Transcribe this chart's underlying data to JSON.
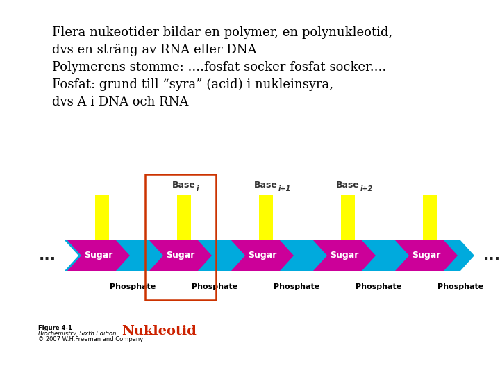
{
  "title_text": "Flera nukeotider bildar en polymer, en polynukleotid,\ndvs en sträng av RNA eller DNA\nPolymerens stomme: ....fosfat-socker-fosfat-socker....\nFosfat: grund till “syra” (acid) i nukleinsyra,\ndvs A i DNA och RNA",
  "sugar_color": "#CC0099",
  "phosphate_color": "#00AADD",
  "base_color": "#FFFF00",
  "sugar_label": "Sugar",
  "phosphate_label": "Phosphate",
  "base_labels_main": [
    "",
    "Base",
    "Base",
    "Base",
    ""
  ],
  "base_subs": [
    "",
    "i",
    "i+1",
    "i+2",
    ""
  ],
  "nukleotid_label": "Nukleotid",
  "nukleotid_color": "#CC2200",
  "figure_label_1": "Figure 4-1",
  "figure_label_2": "Biochemistry, Sixth Edition",
  "figure_label_3": "© 2007 W.H.Freeman and Company",
  "box_color": "#CC3300",
  "bg_color": "#FFFFFF",
  "dots_color": "#222222",
  "n_sugars": 5,
  "title_fontsize": 13,
  "sugar_fontsize": 9,
  "phosphate_fontsize": 8,
  "base_fontsize": 9
}
